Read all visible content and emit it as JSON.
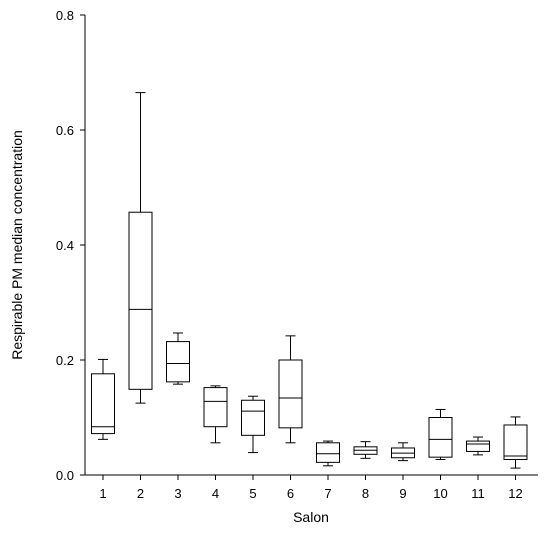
{
  "chart_data": {
    "type": "box",
    "title": "",
    "xlabel": "Salon",
    "ylabel": "Respirable PM median concentration",
    "ylim": [
      0,
      0.8
    ],
    "yticks": [
      "0.0",
      "0.2",
      "0.4",
      "0.6",
      "0.8"
    ],
    "grid": false,
    "categories": [
      "1",
      "2",
      "3",
      "4",
      "5",
      "6",
      "7",
      "8",
      "9",
      "10",
      "11",
      "12"
    ],
    "boxes": [
      {
        "min": 0.062,
        "q1": 0.072,
        "median": 0.084,
        "q3": 0.176,
        "max": 0.201
      },
      {
        "min": 0.125,
        "q1": 0.149,
        "median": 0.288,
        "q3": 0.457,
        "max": 0.665
      },
      {
        "min": 0.158,
        "q1": 0.162,
        "median": 0.194,
        "q3": 0.232,
        "max": 0.247
      },
      {
        "min": 0.056,
        "q1": 0.084,
        "median": 0.128,
        "q3": 0.152,
        "max": 0.155
      },
      {
        "min": 0.039,
        "q1": 0.069,
        "median": 0.111,
        "q3": 0.13,
        "max": 0.137
      },
      {
        "min": 0.056,
        "q1": 0.082,
        "median": 0.134,
        "q3": 0.2,
        "max": 0.242
      },
      {
        "min": 0.016,
        "q1": 0.022,
        "median": 0.037,
        "q3": 0.056,
        "max": 0.059
      },
      {
        "min": 0.029,
        "q1": 0.036,
        "median": 0.043,
        "q3": 0.049,
        "max": 0.058
      },
      {
        "min": 0.025,
        "q1": 0.03,
        "median": 0.038,
        "q3": 0.047,
        "max": 0.056
      },
      {
        "min": 0.027,
        "q1": 0.031,
        "median": 0.062,
        "q3": 0.1,
        "max": 0.114
      },
      {
        "min": 0.035,
        "q1": 0.041,
        "median": 0.054,
        "q3": 0.059,
        "max": 0.066
      },
      {
        "min": 0.012,
        "q1": 0.027,
        "median": 0.033,
        "q3": 0.087,
        "max": 0.101
      }
    ]
  }
}
